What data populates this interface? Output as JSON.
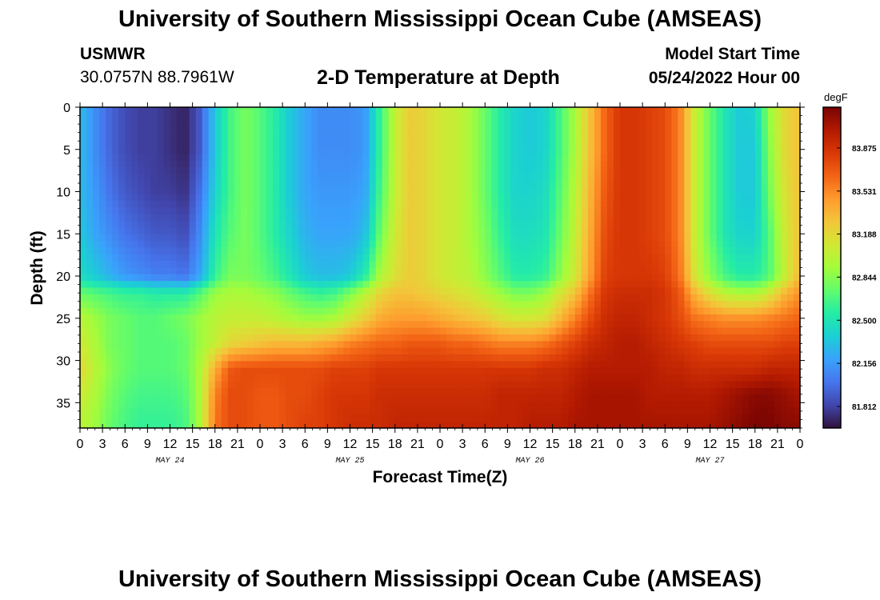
{
  "header": {
    "title": "University of Southern Mississippi Ocean Cube (AMSEAS)",
    "station": "USMWR",
    "coords": "30.0757N  88.7961W",
    "subtitle": "2-D Temperature at Depth",
    "model_label": "Model Start Time",
    "model_date": "05/24/2022 Hour 00"
  },
  "footer": {
    "title": "University of Southern Mississippi Ocean Cube (AMSEAS)"
  },
  "chart_data": {
    "type": "heatmap",
    "title": "2-D Temperature at Depth",
    "xlabel": "Forecast Time(Z)",
    "ylabel": "Depth (ft)",
    "unit": "degF",
    "x_range_hours": [
      0,
      96
    ],
    "y_range_ft": [
      0,
      38
    ],
    "x_tick_hours": [
      0,
      3,
      6,
      9,
      12,
      15,
      18,
      21,
      24,
      27,
      30,
      33,
      36,
      39,
      42,
      45,
      48,
      51,
      54,
      57,
      60,
      63,
      66,
      69,
      72,
      75,
      78,
      81,
      84,
      87,
      90,
      93,
      96
    ],
    "x_tick_labels": [
      "0",
      "3",
      "6",
      "9",
      "12",
      "15",
      "18",
      "21",
      "0",
      "3",
      "6",
      "9",
      "12",
      "15",
      "18",
      "21",
      "0",
      "3",
      "6",
      "9",
      "12",
      "15",
      "18",
      "21",
      "0",
      "3",
      "6",
      "9",
      "12",
      "15",
      "18",
      "21",
      "0"
    ],
    "y_ticks": [
      0,
      5,
      10,
      15,
      20,
      25,
      30,
      35
    ],
    "y_tick_labels": [
      "0",
      "5",
      "10",
      "15",
      "20",
      "25",
      "30",
      "35"
    ],
    "date_labels": [
      {
        "hour": 12,
        "text": "MAY 24"
      },
      {
        "hour": 36,
        "text": "MAY 25"
      },
      {
        "hour": 60,
        "text": "MAY 26"
      },
      {
        "hour": 84,
        "text": "MAY 27"
      }
    ],
    "colorbar": {
      "min": 81.64,
      "max": 84.2,
      "labels": [
        "83.875",
        "83.531",
        "83.188",
        "82.844",
        "82.500",
        "82.156",
        "81.812"
      ],
      "colors": [
        "#30123b",
        "#4145ab",
        "#4675ed",
        "#39a2fc",
        "#1bcfd4",
        "#24eca6",
        "#61fc6c",
        "#a4fc3b",
        "#d1e834",
        "#f3c63a",
        "#fe9b2d",
        "#f36315",
        "#d93806",
        "#b11901",
        "#7a0403"
      ]
    },
    "grid_hours": [
      0,
      2,
      4,
      6,
      8,
      10,
      12,
      14,
      16,
      18,
      20,
      22,
      24,
      26,
      28,
      30,
      32,
      34,
      36,
      38,
      40,
      42,
      44,
      46,
      48,
      50,
      52,
      54,
      56,
      58,
      60,
      62,
      64,
      66,
      68,
      70,
      72,
      74,
      76,
      78,
      80,
      82,
      84,
      86,
      88,
      90,
      92,
      94,
      96
    ],
    "grid_depths_ft": [
      0,
      5,
      10,
      15,
      20,
      22,
      25,
      28,
      31,
      34,
      38
    ],
    "values": [
      [
        82.3,
        82.1,
        81.95,
        81.85,
        81.8,
        81.8,
        81.75,
        81.7,
        81.9,
        82.35,
        82.65,
        82.8,
        82.7,
        82.55,
        82.35,
        82.2,
        82.1,
        82.1,
        82.1,
        82.15,
        82.6,
        83.05,
        83.25,
        83.2,
        83.1,
        83.05,
        82.95,
        82.75,
        82.55,
        82.4,
        82.35,
        82.4,
        82.65,
        82.95,
        83.3,
        83.65,
        83.85,
        83.85,
        83.8,
        83.75,
        83.55,
        83.05,
        82.75,
        82.5,
        82.35,
        82.4,
        82.9,
        83.2,
        83.3
      ],
      [
        82.3,
        82.1,
        81.95,
        81.85,
        81.8,
        81.8,
        81.75,
        81.7,
        81.9,
        82.35,
        82.65,
        82.8,
        82.7,
        82.55,
        82.35,
        82.2,
        82.1,
        82.1,
        82.1,
        82.15,
        82.6,
        83.05,
        83.25,
        83.2,
        83.1,
        83.05,
        82.95,
        82.75,
        82.55,
        82.4,
        82.35,
        82.4,
        82.65,
        82.95,
        83.3,
        83.65,
        83.85,
        83.85,
        83.8,
        83.75,
        83.55,
        83.05,
        82.75,
        82.5,
        82.35,
        82.35,
        82.85,
        83.2,
        83.3
      ],
      [
        82.3,
        82.15,
        82.0,
        81.9,
        81.85,
        81.8,
        81.8,
        81.75,
        82.0,
        82.4,
        82.65,
        82.8,
        82.7,
        82.55,
        82.35,
        82.2,
        82.15,
        82.15,
        82.15,
        82.2,
        82.65,
        83.05,
        83.25,
        83.2,
        83.1,
        83.05,
        82.95,
        82.75,
        82.55,
        82.4,
        82.4,
        82.45,
        82.7,
        83.0,
        83.35,
        83.7,
        83.85,
        83.85,
        83.8,
        83.75,
        83.55,
        83.05,
        82.75,
        82.5,
        82.35,
        82.35,
        82.8,
        83.15,
        83.3
      ],
      [
        82.35,
        82.2,
        82.1,
        82.0,
        81.95,
        81.9,
        81.9,
        81.85,
        82.1,
        82.5,
        82.7,
        82.8,
        82.7,
        82.55,
        82.4,
        82.25,
        82.2,
        82.2,
        82.2,
        82.3,
        82.75,
        83.1,
        83.25,
        83.2,
        83.1,
        83.05,
        82.95,
        82.8,
        82.6,
        82.45,
        82.45,
        82.5,
        82.75,
        83.05,
        83.4,
        83.75,
        83.85,
        83.85,
        83.8,
        83.75,
        83.55,
        83.05,
        82.75,
        82.5,
        82.4,
        82.4,
        82.7,
        83.1,
        83.3
      ],
      [
        82.45,
        82.35,
        82.25,
        82.15,
        82.1,
        82.05,
        82.05,
        82.0,
        82.2,
        82.6,
        82.8,
        82.8,
        82.75,
        82.65,
        82.5,
        82.35,
        82.3,
        82.3,
        82.35,
        82.55,
        82.95,
        83.15,
        83.25,
        83.2,
        83.1,
        83.05,
        83.0,
        82.85,
        82.7,
        82.55,
        82.55,
        82.6,
        82.85,
        83.1,
        83.45,
        83.8,
        83.85,
        83.85,
        83.85,
        83.8,
        83.6,
        83.1,
        82.85,
        82.65,
        82.55,
        82.55,
        82.7,
        83.05,
        83.35
      ],
      [
        82.75,
        82.7,
        82.65,
        82.6,
        82.6,
        82.55,
        82.55,
        82.55,
        82.7,
        82.9,
        82.95,
        82.95,
        82.9,
        82.85,
        82.75,
        82.65,
        82.6,
        82.65,
        82.8,
        83.0,
        83.2,
        83.3,
        83.3,
        83.25,
        83.2,
        83.15,
        83.1,
        83.0,
        82.9,
        82.8,
        82.8,
        82.9,
        83.1,
        83.3,
        83.6,
        83.85,
        83.9,
        83.9,
        83.9,
        83.85,
        83.7,
        83.35,
        83.15,
        83.0,
        82.95,
        82.95,
        83.1,
        83.35,
        83.5
      ],
      [
        83.0,
        82.9,
        82.8,
        82.75,
        82.7,
        82.7,
        82.75,
        82.8,
        82.9,
        83.0,
        83.05,
        83.05,
        83.05,
        83.0,
        82.95,
        82.9,
        82.9,
        82.95,
        83.1,
        83.25,
        83.4,
        83.45,
        83.45,
        83.45,
        83.4,
        83.35,
        83.3,
        83.25,
        83.15,
        83.1,
        83.1,
        83.15,
        83.35,
        83.55,
        83.75,
        83.9,
        83.95,
        83.95,
        83.9,
        83.85,
        83.75,
        83.6,
        83.55,
        83.5,
        83.5,
        83.5,
        83.55,
        83.6,
        83.65
      ],
      [
        83.1,
        82.95,
        82.8,
        82.75,
        82.7,
        82.7,
        82.7,
        82.75,
        82.9,
        83.05,
        83.2,
        83.25,
        83.3,
        83.35,
        83.35,
        83.35,
        83.4,
        83.45,
        83.55,
        83.6,
        83.65,
        83.65,
        83.7,
        83.7,
        83.7,
        83.65,
        83.65,
        83.6,
        83.55,
        83.55,
        83.55,
        83.6,
        83.7,
        83.8,
        83.9,
        83.95,
        84.0,
        84.0,
        83.95,
        83.9,
        83.85,
        83.8,
        83.75,
        83.75,
        83.75,
        83.75,
        83.75,
        83.8,
        83.8
      ],
      [
        83.2,
        83.0,
        82.85,
        82.75,
        82.7,
        82.7,
        82.7,
        82.75,
        82.95,
        83.4,
        83.7,
        83.75,
        83.75,
        83.75,
        83.75,
        83.75,
        83.75,
        83.8,
        83.8,
        83.8,
        83.85,
        83.85,
        83.85,
        83.85,
        83.85,
        83.85,
        83.85,
        83.85,
        83.85,
        83.85,
        83.85,
        83.9,
        83.9,
        83.95,
        84.0,
        84.0,
        84.0,
        84.0,
        84.0,
        83.95,
        83.95,
        83.9,
        83.9,
        83.9,
        83.9,
        83.9,
        83.95,
        83.95,
        83.95
      ],
      [
        83.1,
        82.95,
        82.8,
        82.7,
        82.65,
        82.65,
        82.65,
        82.7,
        82.95,
        83.55,
        83.75,
        83.75,
        83.7,
        83.7,
        83.75,
        83.75,
        83.8,
        83.85,
        83.85,
        83.85,
        83.9,
        83.9,
        83.9,
        83.9,
        83.9,
        83.9,
        83.9,
        83.9,
        83.95,
        83.95,
        83.95,
        83.95,
        83.95,
        84.0,
        84.05,
        84.05,
        84.05,
        84.05,
        84.0,
        84.0,
        84.0,
        84.0,
        84.0,
        84.05,
        84.1,
        84.15,
        84.15,
        84.1,
        84.05
      ],
      [
        83.0,
        82.9,
        82.75,
        82.65,
        82.6,
        82.6,
        82.6,
        82.65,
        82.95,
        83.6,
        83.75,
        83.75,
        83.7,
        83.7,
        83.75,
        83.8,
        83.8,
        83.85,
        83.9,
        83.9,
        83.9,
        83.95,
        83.95,
        83.95,
        83.95,
        83.95,
        83.95,
        83.95,
        83.95,
        83.95,
        84.0,
        84.0,
        84.0,
        84.05,
        84.05,
        84.05,
        84.05,
        84.05,
        84.05,
        84.05,
        84.05,
        84.05,
        84.05,
        84.1,
        84.15,
        84.2,
        84.2,
        84.15,
        84.15
      ]
    ]
  }
}
